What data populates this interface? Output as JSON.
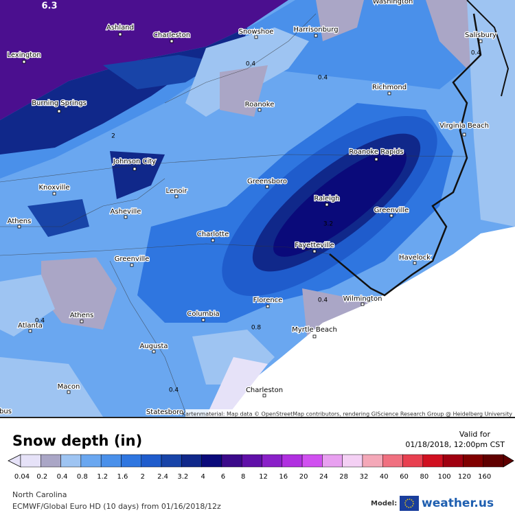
{
  "map": {
    "top_label": "6.3",
    "cities": [
      "Washington",
      "Ashland",
      "Charleston",
      "Snowshoe",
      "Harrisonburg",
      "Salisbury",
      "Lexington",
      "Richmond",
      "Burning Springs",
      "Roanoke",
      "Virginia Beach",
      "Roanoke Rapids",
      "Johnson City",
      "Greensboro",
      "Knoxville",
      "Lenoir",
      "Raleigh",
      "Asheville",
      "Greenville",
      "Athens",
      "Charlotte",
      "Fayetteville",
      "Havelock",
      "Greenville",
      "Florence",
      "Wilmington",
      "Columbia",
      "Athens",
      "Atlanta",
      "Myrtle Beach",
      "Augusta",
      "Macon",
      "Charleston",
      "Statesboro",
      "bus"
    ],
    "contour_labels": [
      "0.4",
      "0.4",
      "0.4",
      "0.4",
      "0.4",
      "0.4",
      "0.8",
      "2",
      "3.2"
    ],
    "attribution": "Kartenmaterial: Map data © OpenStreetMap contributors, rendering GIScience Research Group @ Heidelberg University"
  },
  "legend": {
    "title": "Snow depth (in)",
    "valid_label": "Valid for",
    "valid_time": "01/18/2018, 12:00pm CST",
    "bins": [
      {
        "label": "0.04",
        "color": "#e6e2f8"
      },
      {
        "label": "0.2",
        "color": "#aaa6c6"
      },
      {
        "label": "0.4",
        "color": "#9ec4f2"
      },
      {
        "label": "0.8",
        "color": "#6aa7f0"
      },
      {
        "label": "1.2",
        "color": "#4a90ea"
      },
      {
        "label": "1.6",
        "color": "#2f76e0"
      },
      {
        "label": "2",
        "color": "#1f5ccc"
      },
      {
        "label": "2.4",
        "color": "#1844a8"
      },
      {
        "label": "3.2",
        "color": "#10288a"
      },
      {
        "label": "4",
        "color": "#0a0a7a"
      },
      {
        "label": "6",
        "color": "#3b0a8a"
      },
      {
        "label": "8",
        "color": "#6010a8"
      },
      {
        "label": "12",
        "color": "#8a20c8"
      },
      {
        "label": "16",
        "color": "#b030e0"
      },
      {
        "label": "20",
        "color": "#d050f0"
      },
      {
        "label": "24",
        "color": "#e8a0f0"
      },
      {
        "label": "28",
        "color": "#f4d0f4"
      },
      {
        "label": "32",
        "color": "#f4a8b8"
      },
      {
        "label": "40",
        "color": "#f07080"
      },
      {
        "label": "60",
        "color": "#e84050"
      },
      {
        "label": "80",
        "color": "#d01020"
      },
      {
        "label": "100",
        "color": "#a00010"
      },
      {
        "label": "120",
        "color": "#800000"
      },
      {
        "label": "160",
        "color": "#600000"
      }
    ]
  },
  "footer": {
    "region": "North Carolina",
    "model_run": "ECMWF/Global Euro HD (10 days) from 01/16/2018/12z",
    "model_label": "Model:",
    "brand": "weather.us"
  }
}
